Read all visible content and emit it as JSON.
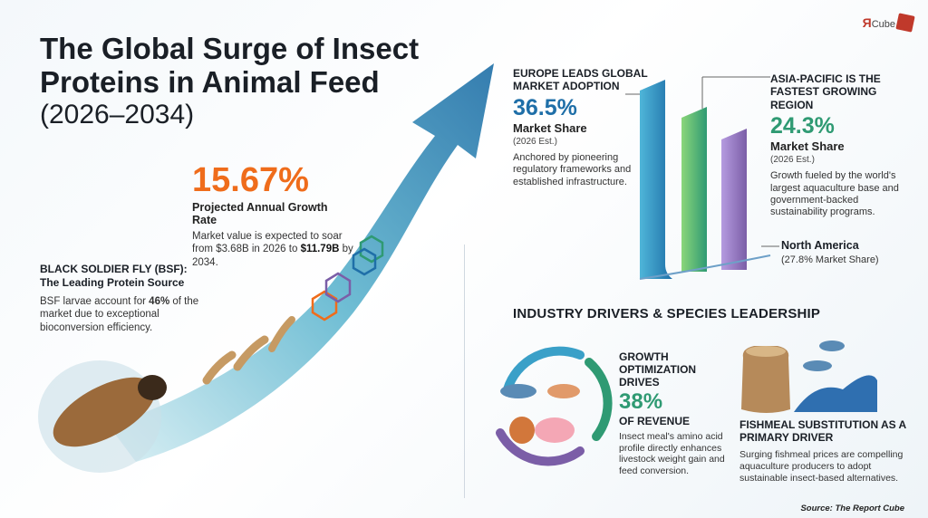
{
  "title": "The Global Surge of Insect Proteins in Animal Feed",
  "years": "(2026–2034)",
  "logo": {
    "text_a": "Я",
    "text_b": "Cube"
  },
  "growth_rate": {
    "value": "15.67%",
    "label": "Projected Annual Growth Rate",
    "desc_pre": "Market value is expected to soar from $3.68B in 2026 to ",
    "desc_bold": "$11.79B",
    "desc_post": " by 2034."
  },
  "bsf": {
    "heading_line1": "BLACK SOLDIER FLY (BSF):",
    "heading_line2": "The Leading Protein Source",
    "desc_pre": "BSF larvae account for ",
    "desc_bold": "46%",
    "desc_post": " of the market due to exceptional bioconversion efficiency."
  },
  "europe": {
    "heading": "EUROPE LEADS GLOBAL MARKET ADOPTION",
    "value": "36.5%",
    "share_label": "Market Share",
    "est": "(2026 Est.)",
    "desc": "Anchored by pioneering regulatory frameworks and established infrastructure."
  },
  "asia": {
    "heading": "ASIA-PACIFIC IS THE FASTEST GROWING REGION",
    "value": "24.3%",
    "share_label": "Market Share",
    "est": "(2026 Est.)",
    "desc": "Growth fueled by the world's largest aquaculture base and government-backed sustainability programs."
  },
  "north_america": {
    "heading": "North America",
    "sub": "(27.8% Market Share)"
  },
  "drivers_title": "INDUSTRY DRIVERS & SPECIES LEADERSHIP",
  "growth_opt": {
    "heading": "GROWTH OPTIMIZATION DRIVES",
    "value": "38%",
    "of_label": "OF REVENUE",
    "desc": "Insect meal's amino acid profile directly enhances livestock weight gain and feed conversion."
  },
  "fishmeal": {
    "heading": "FISHMEAL SUBSTITUTION AS A PRIMARY DRIVER",
    "desc": "Surging fishmeal prices are compelling aquaculture producers to adopt sustainable insect-based alternatives."
  },
  "source": "Source: The Report Cube",
  "colors": {
    "orange": "#ef6c1b",
    "blue": "#1f6fa8",
    "green": "#2f9a73",
    "purple": "#7b5ea7"
  },
  "icons": [
    "arrow-icon",
    "larva-icon",
    "molecule-icon",
    "fish-icon",
    "pig-icon",
    "chicken-icon",
    "cycle-arrows-icon",
    "feed-sack-icon",
    "wave-icon",
    "cube-logo-icon"
  ]
}
